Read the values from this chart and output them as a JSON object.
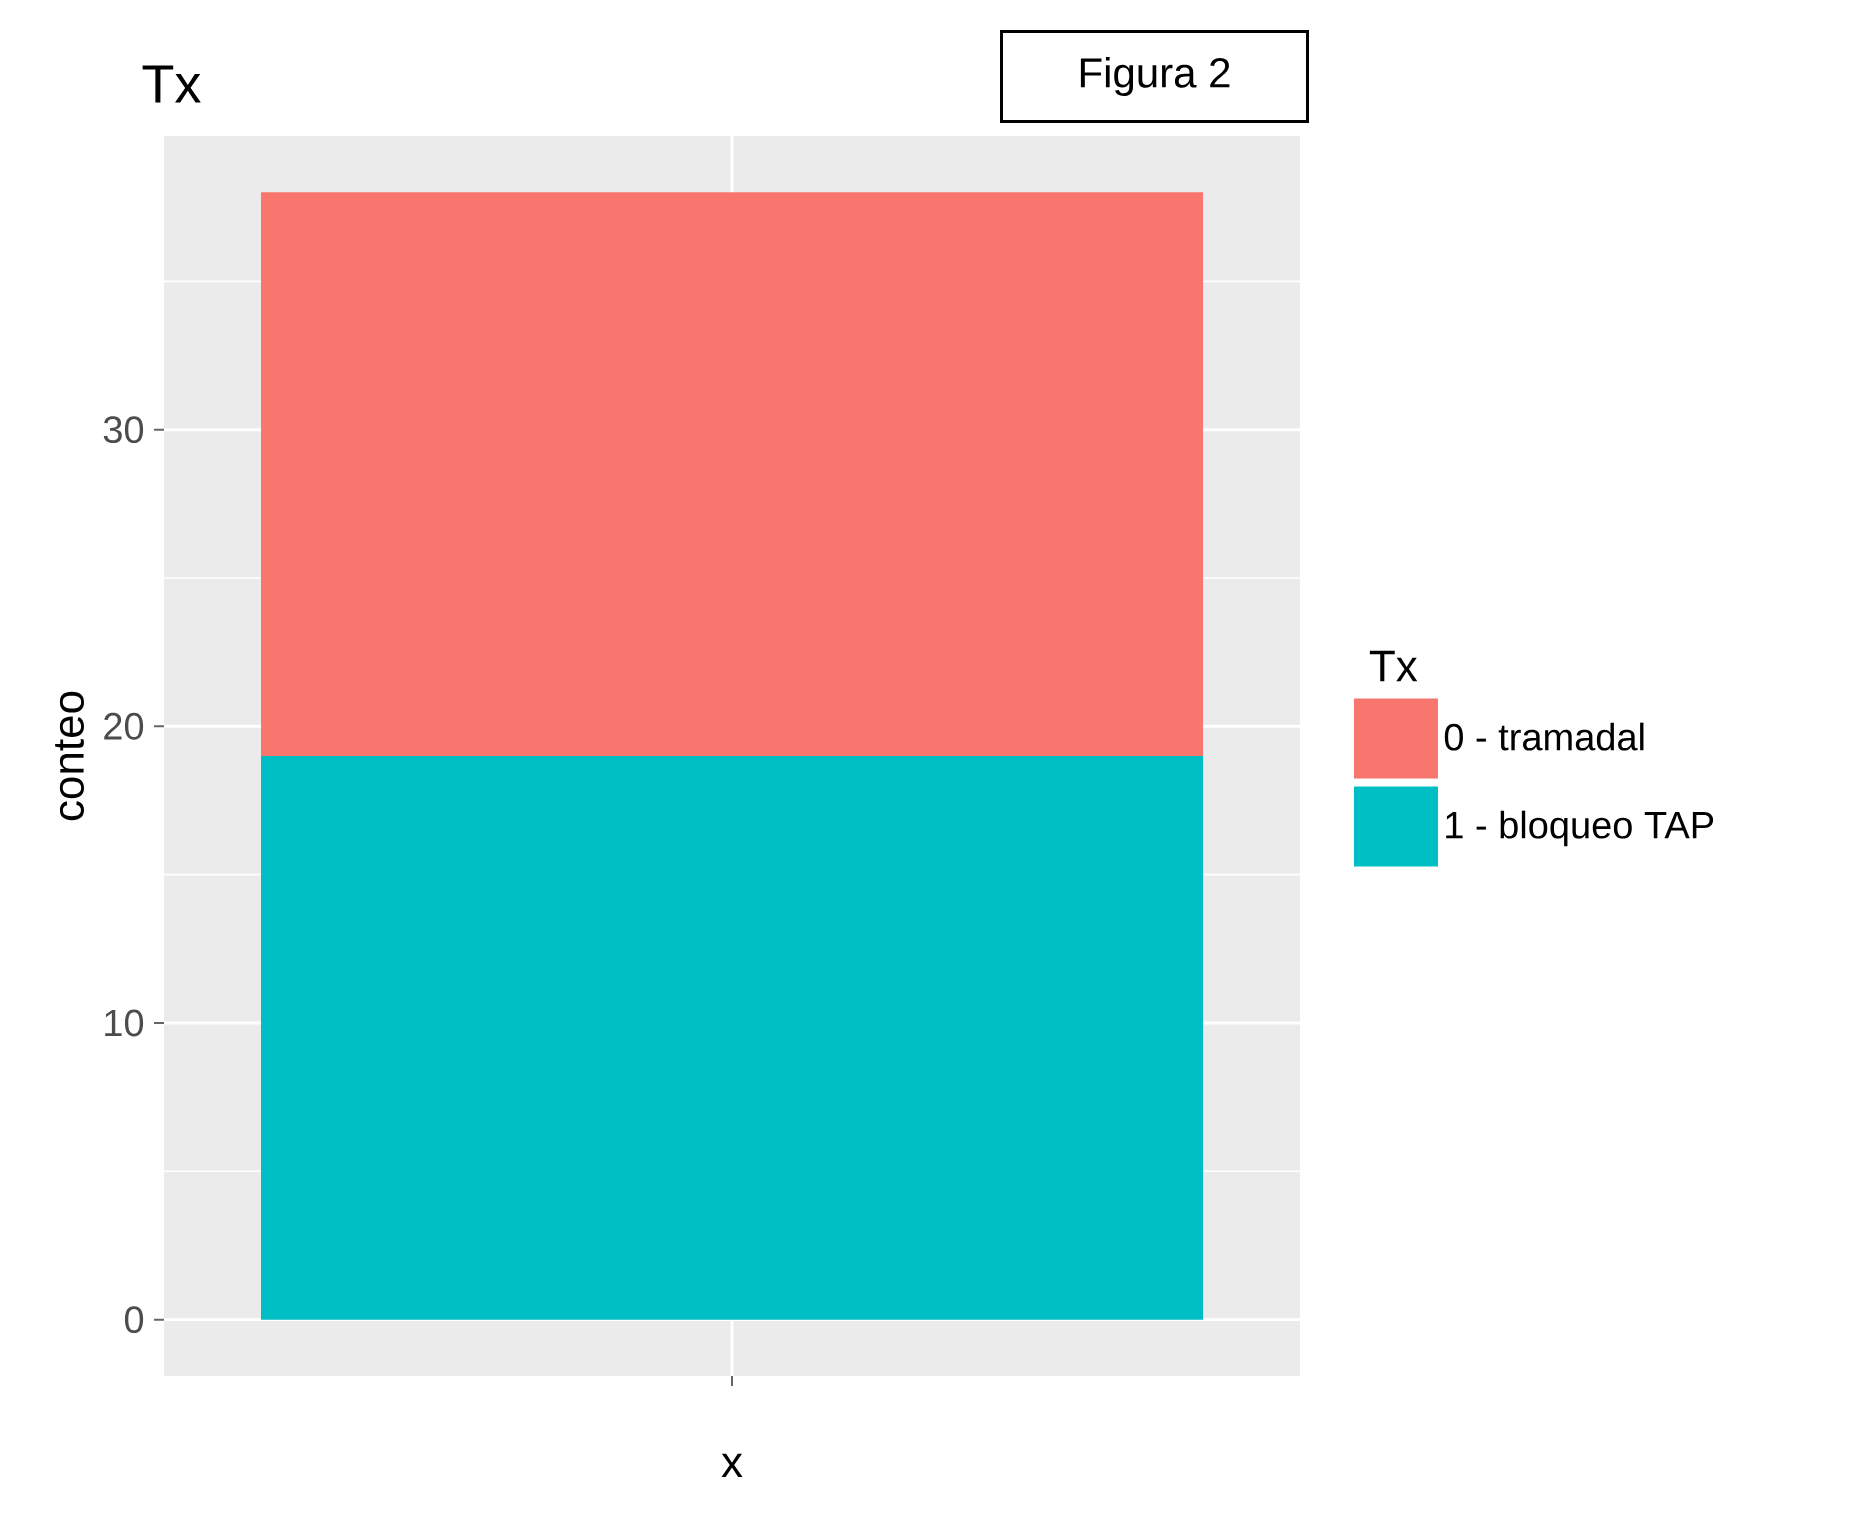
{
  "chart_data": {
    "type": "bar",
    "title": "Tx",
    "xlabel": "x",
    "ylabel": "conteo",
    "legend_title": "Tx",
    "categories": [
      null
    ],
    "stacked": true,
    "series": [
      {
        "name": "1 - bloqueo TAP",
        "color": "#00bfc4",
        "values": [
          19
        ]
      },
      {
        "name": "0 - tramadal",
        "color": "#f8766d",
        "values": [
          19
        ]
      }
    ],
    "ylim": [
      -1.9,
      39.9
    ],
    "yticks": [
      0,
      10,
      20,
      30
    ],
    "grid": true,
    "legend": "right",
    "annotations": [
      "Figura 2"
    ]
  }
}
